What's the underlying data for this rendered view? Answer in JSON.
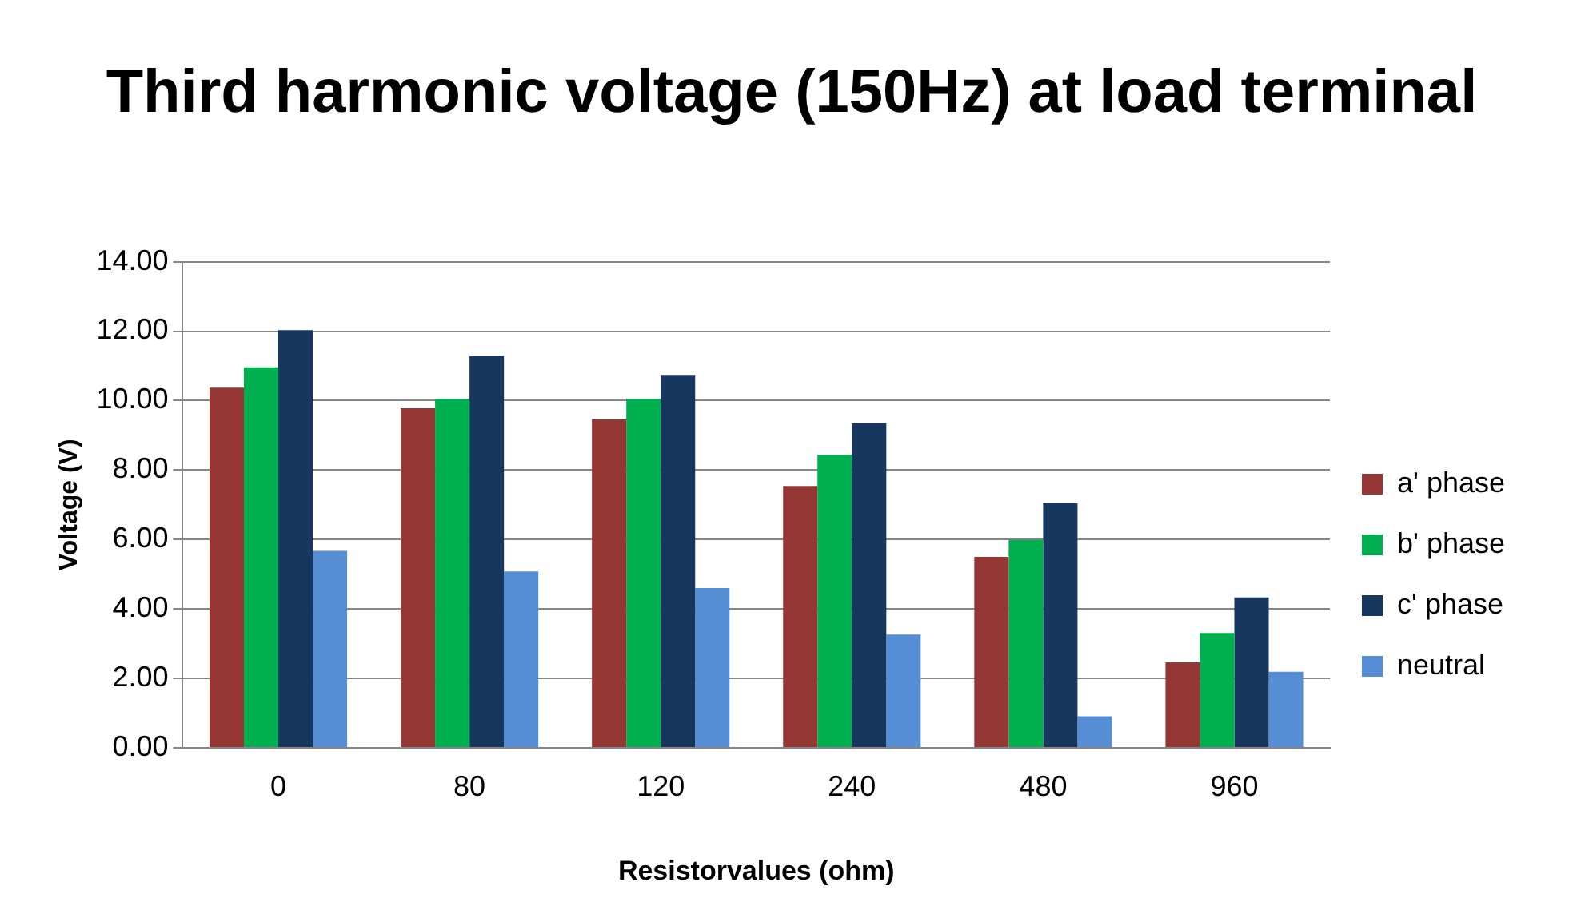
{
  "chart_data": {
    "type": "bar",
    "title": "Third harmonic voltage (150Hz) at load terminal",
    "xlabel": "Resistorvalues (ohm)",
    "ylabel": "Voltage (V)",
    "categories": [
      "0",
      "80",
      "120",
      "240",
      "480",
      "960"
    ],
    "series": [
      {
        "name": "a' phase",
        "color": "#953735",
        "values": [
          10.37,
          9.78,
          9.46,
          7.54,
          5.5,
          2.46
        ]
      },
      {
        "name": "b' phase",
        "color": "#00b050",
        "values": [
          10.96,
          10.05,
          10.05,
          8.44,
          5.99,
          3.31
        ]
      },
      {
        "name": "c' phase",
        "color": "#17375e",
        "values": [
          12.03,
          11.28,
          10.74,
          9.35,
          7.05,
          4.33
        ]
      },
      {
        "name": "neutral",
        "color": "#558ed5",
        "values": [
          5.67,
          5.08,
          4.6,
          3.26,
          0.91,
          2.19
        ]
      }
    ],
    "ylim": [
      0,
      14
    ],
    "yticks": [
      {
        "value": 0,
        "label": "0.00"
      },
      {
        "value": 2,
        "label": "2.00"
      },
      {
        "value": 4,
        "label": "4.00"
      },
      {
        "value": 6,
        "label": "6.00"
      },
      {
        "value": 8,
        "label": "8.00"
      },
      {
        "value": 10,
        "label": "10.00"
      },
      {
        "value": 12,
        "label": "12.00"
      },
      {
        "value": 14,
        "label": "14.00"
      }
    ],
    "grid": "y",
    "legend": "right"
  }
}
